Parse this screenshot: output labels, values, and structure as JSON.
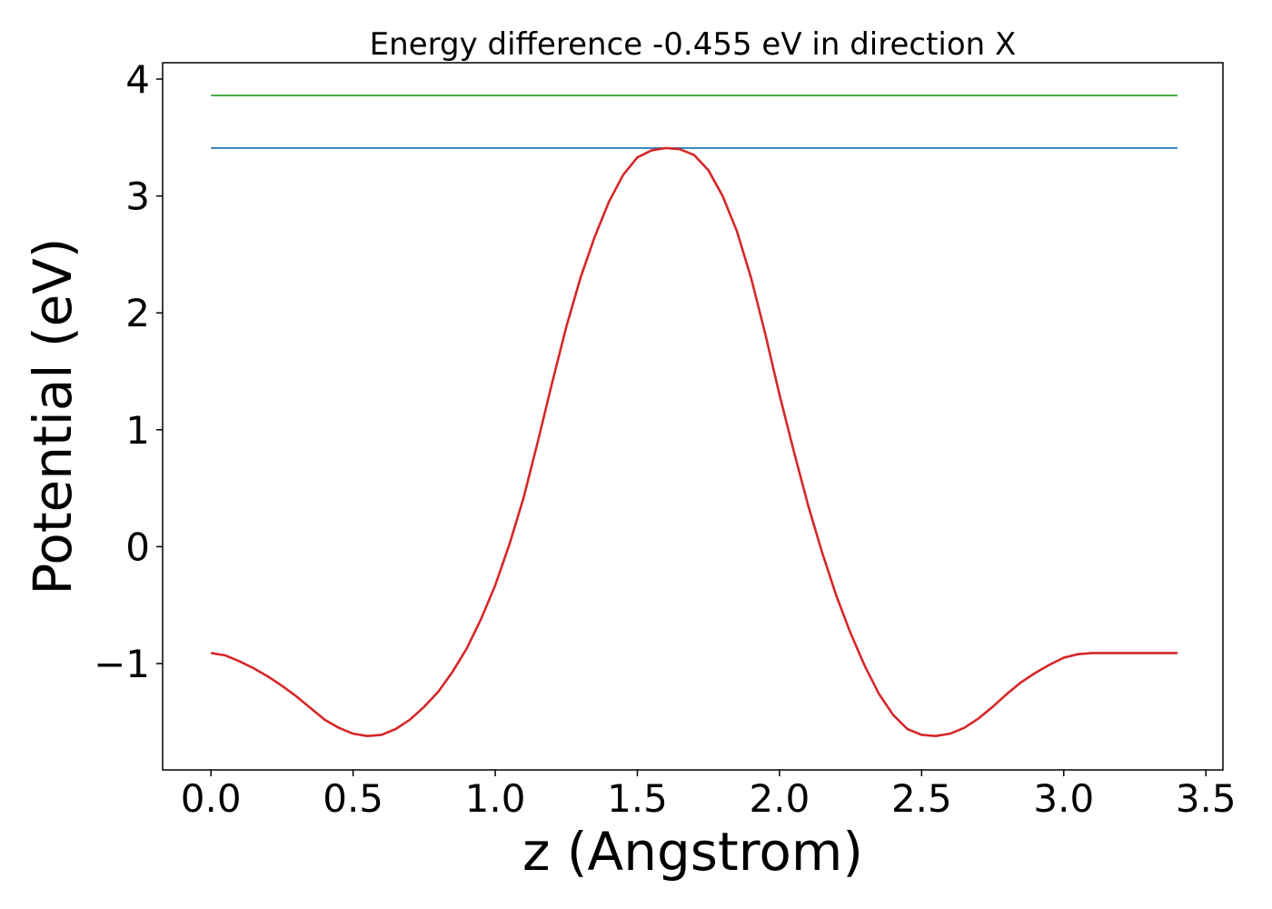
{
  "chart_data": {
    "type": "line",
    "title": "Energy difference -0.455 eV in direction X",
    "xlabel": "z (Angstrom)",
    "ylabel": "Potential (eV)",
    "xlim": [
      -0.17,
      3.56
    ],
    "ylim": [
      -1.91,
      4.14
    ],
    "grid": false,
    "x_ticks": [
      0.0,
      0.5,
      1.0,
      1.5,
      2.0,
      2.5,
      3.0,
      3.5
    ],
    "x_tick_labels": [
      "0.0",
      "0.5",
      "1.0",
      "1.5",
      "2.0",
      "2.5",
      "3.0",
      "3.5"
    ],
    "y_ticks": [
      -1,
      0,
      1,
      2,
      3,
      4
    ],
    "y_tick_labels": [
      "−1",
      "0",
      "1",
      "2",
      "3",
      "4"
    ],
    "series": [
      {
        "color": "#2ca02c",
        "x": [
          0.0,
          3.4
        ],
        "y": [
          3.86,
          3.86
        ]
      },
      {
        "color": "#1f77b4",
        "x": [
          0.0,
          3.4
        ],
        "y": [
          3.41,
          3.41
        ]
      },
      {
        "color": "#d62728",
        "x": [
          0.0,
          0.05,
          0.1,
          0.15,
          0.2,
          0.25,
          0.3,
          0.35,
          0.4,
          0.45,
          0.5,
          0.55,
          0.6,
          0.65,
          0.7,
          0.75,
          0.8,
          0.85,
          0.9,
          0.95,
          1.0,
          1.05,
          1.1,
          1.15,
          1.2,
          1.25,
          1.3,
          1.35,
          1.4,
          1.45,
          1.5,
          1.55,
          1.6,
          1.65,
          1.7,
          1.75,
          1.8,
          1.85,
          1.9,
          1.95,
          2.0,
          2.05,
          2.1,
          2.15,
          2.2,
          2.25,
          2.3,
          2.35,
          2.4,
          2.45,
          2.5,
          2.55,
          2.6,
          2.65,
          2.7,
          2.75,
          2.8,
          2.85,
          2.9,
          2.95,
          3.0,
          3.05,
          3.1,
          3.15,
          3.2,
          3.25,
          3.3,
          3.35,
          3.4
        ],
        "y": [
          -0.91,
          -0.93,
          -0.98,
          -1.04,
          -1.11,
          -1.19,
          -1.28,
          -1.38,
          -1.48,
          -1.55,
          -1.6,
          -1.62,
          -1.61,
          -1.56,
          -1.48,
          -1.37,
          -1.24,
          -1.07,
          -0.87,
          -0.62,
          -0.33,
          0.02,
          0.42,
          0.9,
          1.4,
          1.88,
          2.3,
          2.65,
          2.95,
          3.18,
          3.33,
          3.39,
          3.41,
          3.4,
          3.35,
          3.22,
          3.0,
          2.7,
          2.3,
          1.82,
          1.3,
          0.82,
          0.36,
          -0.05,
          -0.42,
          -0.74,
          -1.02,
          -1.26,
          -1.44,
          -1.56,
          -1.61,
          -1.62,
          -1.6,
          -1.55,
          -1.47,
          -1.37,
          -1.26,
          -1.16,
          -1.08,
          -1.01,
          -0.95,
          -0.92,
          -0.91,
          -0.91,
          -0.91,
          -0.91,
          -0.91,
          -0.91,
          -0.91
        ]
      }
    ]
  }
}
